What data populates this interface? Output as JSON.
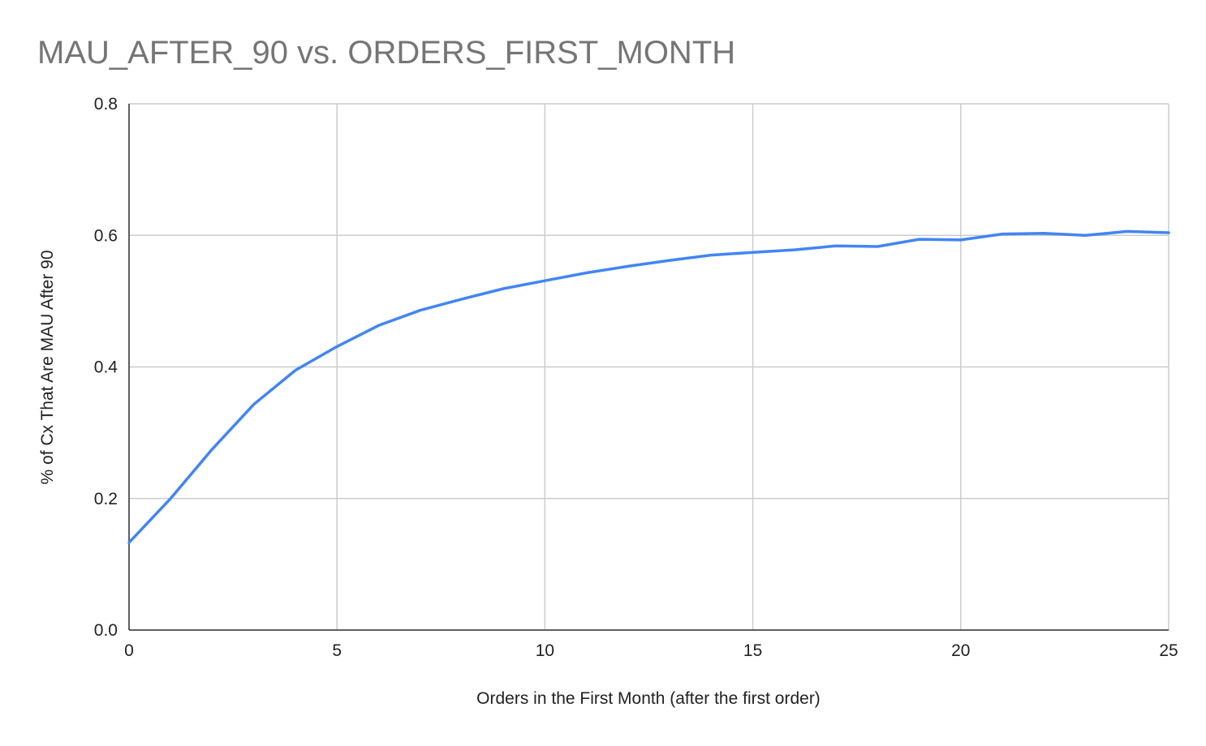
{
  "chart_data": {
    "type": "line",
    "title": "MAU_AFTER_90 vs. ORDERS_FIRST_MONTH",
    "xlabel": "Orders in the First Month (after the first order)",
    "ylabel": "% of Cx That Are MAU After 90",
    "xlim": [
      0,
      25
    ],
    "ylim": [
      0,
      0.8
    ],
    "x_ticks": [
      "0",
      "5",
      "10",
      "15",
      "20",
      "25"
    ],
    "x_tick_values": [
      0,
      5,
      10,
      15,
      20,
      25
    ],
    "y_ticks": [
      "0.0",
      "0.2",
      "0.4",
      "0.6",
      "0.8"
    ],
    "y_tick_values": [
      0,
      0.2,
      0.4,
      0.6,
      0.8
    ],
    "grid": true,
    "legend": "none",
    "series": [
      {
        "color": "#4285f4",
        "x": [
          0,
          1,
          2,
          3,
          4,
          5,
          6,
          7,
          8,
          9,
          10,
          11,
          12,
          13,
          14,
          15,
          16,
          17,
          18,
          19,
          20,
          21,
          22,
          23,
          24,
          25
        ],
        "values": [
          0.133,
          0.2,
          0.275,
          0.343,
          0.395,
          0.431,
          0.463,
          0.486,
          0.503,
          0.519,
          0.531,
          0.543,
          0.553,
          0.562,
          0.57,
          0.574,
          0.578,
          0.584,
          0.583,
          0.594,
          0.593,
          0.602,
          0.603,
          0.6,
          0.606,
          0.604
        ]
      }
    ]
  }
}
